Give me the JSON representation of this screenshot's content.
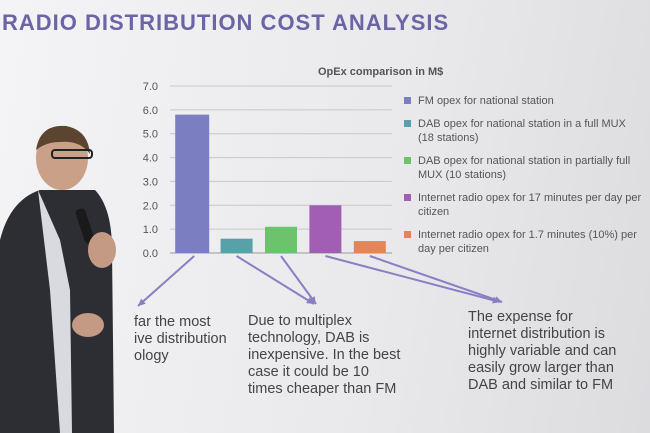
{
  "slide": {
    "title": "RADIO DISTRIBUTION COST ANALYSIS",
    "chart_title": "OpEx comparison in M$"
  },
  "legend": [
    {
      "label_lines": [
        "FM opex for national station"
      ],
      "color": "#7b7fc2"
    },
    {
      "label_lines": [
        "DAB opex for national station in a full MUX",
        "(18 stations)"
      ],
      "color": "#5aa0a8"
    },
    {
      "label_lines": [
        "DAB opex for national station in partially full",
        "MUX (10 stations)"
      ],
      "color": "#6cc36c"
    },
    {
      "label_lines": [
        "Internet radio opex for 17 minutes per day per",
        "citizen"
      ],
      "color": "#a25db5"
    },
    {
      "label_lines": [
        "Internet radio opex for 1.7 minutes (10%) per",
        "day per citizen"
      ],
      "color": "#e3855a"
    }
  ],
  "notes": {
    "left": [
      "far the most",
      "ive distribution",
      "ology"
    ],
    "middle": [
      "Due to multiplex",
      "technology, DAB is",
      "inexpensive. In the best",
      "case it could be 10",
      "times cheaper than FM"
    ],
    "right": [
      "The expense for",
      "internet distribution is",
      "highly variable and can",
      "easily grow larger than",
      "DAB and similar to FM"
    ]
  },
  "chart_data": {
    "type": "bar",
    "title": "OpEx comparison in M$",
    "categories": [
      "FM opex for national station",
      "DAB opex for national station in a full MUX (18 stations)",
      "DAB opex for national station in partially full MUX (10 stations)",
      "Internet radio opex for 17 minutes per day per citizen",
      "Internet radio opex for 1.7 minutes (10%) per day per citizen"
    ],
    "values": [
      5.8,
      0.6,
      1.1,
      2.0,
      0.5
    ],
    "colors": [
      "#7b7fc2",
      "#5aa0a8",
      "#6cc36c",
      "#a25db5",
      "#e3855a"
    ],
    "ylim": [
      0,
      7
    ],
    "yticks": [
      "0.0",
      "1.0",
      "2.0",
      "3.0",
      "4.0",
      "5.0",
      "6.0",
      "7.0"
    ],
    "grid": true,
    "legend": "right"
  }
}
